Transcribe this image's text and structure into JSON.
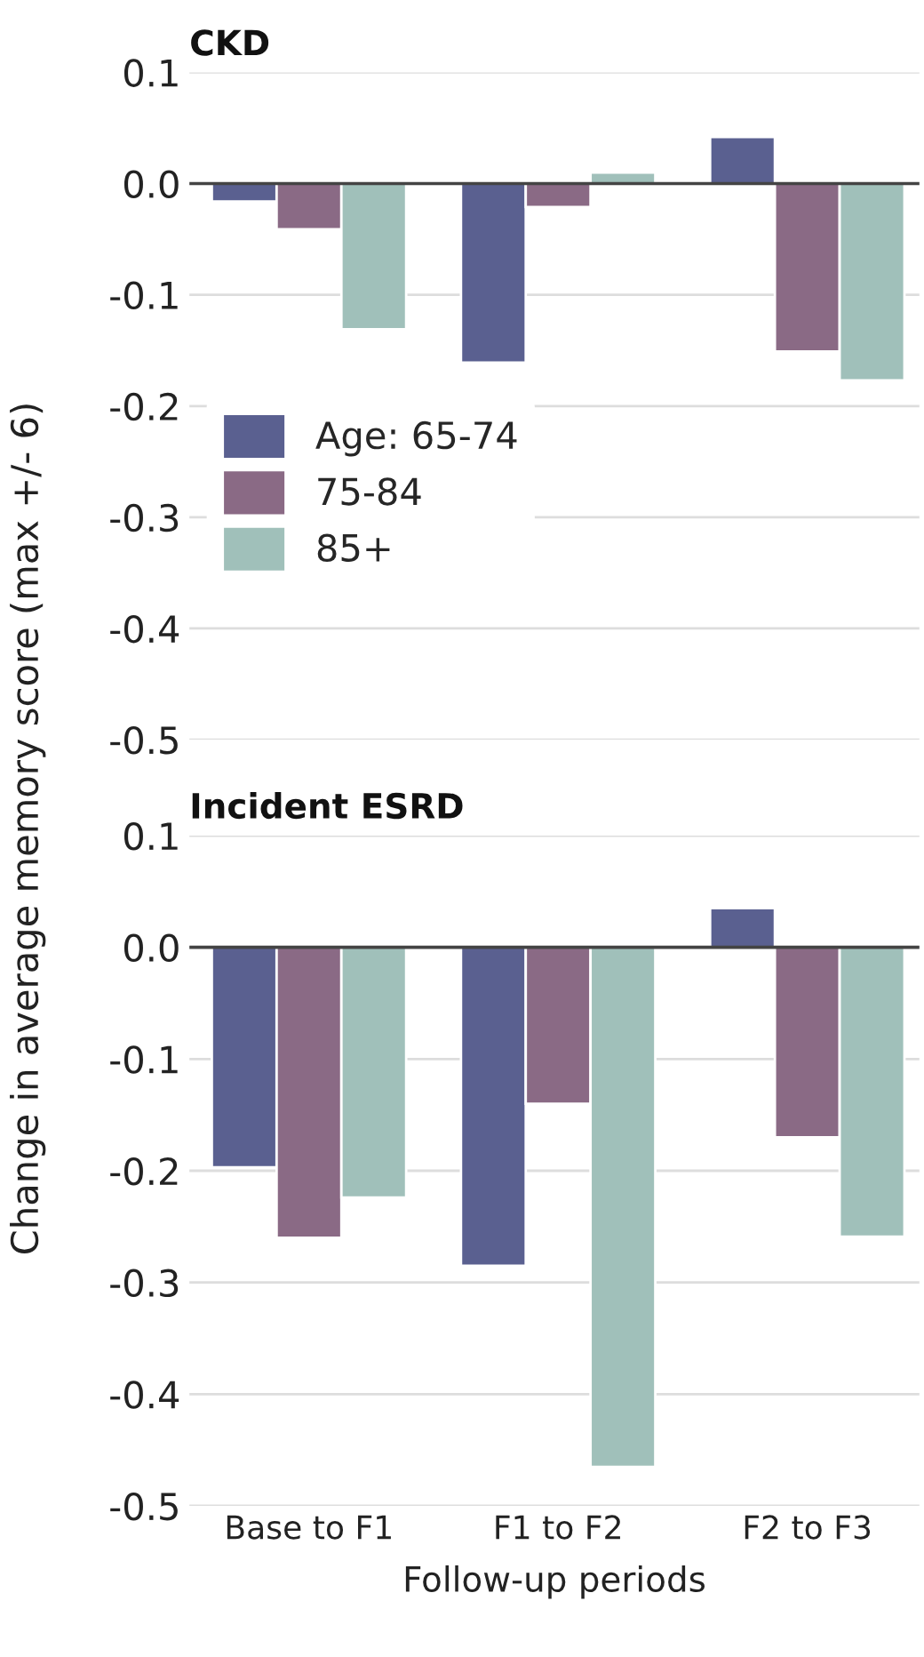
{
  "chart_data": [
    {
      "type": "bar",
      "title": "CKD",
      "ylabel": "Change in average memory score (max +/- 6)",
      "categories": [
        null,
        null,
        null
      ],
      "series": [
        {
          "name": "Age: 65-74",
          "color": "#5a6090",
          "values": [
            -0.016,
            -0.161,
            0.042
          ]
        },
        {
          "name": "75-84",
          "color": "#8a6a85",
          "values": [
            -0.041,
            -0.021,
            -0.151
          ]
        },
        {
          "name": "85+",
          "color": "#a0c0ba",
          "values": [
            -0.131,
            0.01,
            -0.177
          ]
        }
      ],
      "ylim": [
        -0.5,
        0.1
      ],
      "yticks": [
        {
          "value": 0.1,
          "label": "0.1"
        },
        {
          "value": 0.0,
          "label": "0.0"
        },
        {
          "value": -0.1,
          "label": "-0.1"
        },
        {
          "value": -0.2,
          "label": "-0.2"
        },
        {
          "value": -0.3,
          "label": "-0.3"
        },
        {
          "value": -0.4,
          "label": "-0.4"
        },
        {
          "value": -0.5,
          "label": "-0.5"
        }
      ],
      "ref_lines": [
        {
          "axis": "y",
          "value": 0,
          "color": "#444444"
        }
      ],
      "grid": "y",
      "legend": "left",
      "tick_labels": "y"
    },
    {
      "type": "bar",
      "title": "Incident ESRD",
      "xlabel": "Follow-up periods",
      "categories": [
        "Base to F1",
        "F1 to F2",
        "F2 to F3"
      ],
      "series": [
        {
          "color": "#5a6090",
          "values": [
            -0.197,
            -0.285,
            0.035
          ]
        },
        {
          "color": "#8a6a85",
          "values": [
            -0.26,
            -0.14,
            -0.17
          ]
        },
        {
          "color": "#a0c0ba",
          "values": [
            -0.224,
            -0.465,
            -0.259
          ]
        }
      ],
      "ylim": [
        -0.5,
        0.1
      ],
      "yticks": [
        {
          "value": 0.1,
          "label": "0.1"
        },
        {
          "value": 0.0,
          "label": "0.0"
        },
        {
          "value": -0.1,
          "label": "-0.1"
        },
        {
          "value": -0.2,
          "label": "-0.2"
        },
        {
          "value": -0.3,
          "label": "-0.3"
        },
        {
          "value": -0.4,
          "label": "-0.4"
        },
        {
          "value": -0.5,
          "label": "-0.5"
        }
      ],
      "ref_lines": [
        {
          "axis": "y",
          "value": 0,
          "color": "#444444"
        }
      ],
      "grid": "y",
      "legend": false
    }
  ]
}
